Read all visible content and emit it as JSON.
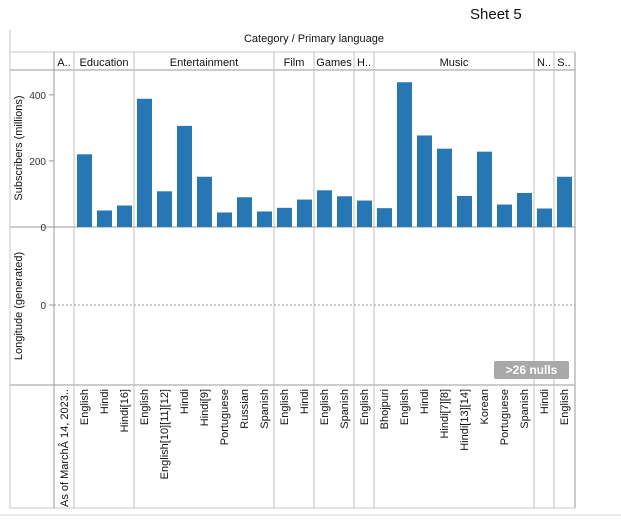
{
  "sheet": {
    "title": "Sheet 5"
  },
  "nulls_badge": ">26 nulls",
  "chart_data": {
    "type": "bar",
    "column_header": "Category  /  Primary language",
    "ylabel_top": "Subscribers (millions)",
    "ylabel_bottom": "Longitude (generated)",
    "y_ticks_top": [
      "400",
      "200",
      "0"
    ],
    "y_ticks_bottom": [
      "0"
    ],
    "ylim": [
      0,
      460
    ],
    "bar_color": "#2677b3",
    "groups": [
      {
        "label": "A..",
        "items": [
          {
            "lang": "As of MarchÂ 14, 2023..",
            "value": null
          }
        ]
      },
      {
        "label": "Education",
        "items": [
          {
            "lang": "English",
            "value": 220
          },
          {
            "lang": "Hindi",
            "value": 50
          },
          {
            "lang": "Hindi[16]",
            "value": 65
          }
        ]
      },
      {
        "label": "Entertainment",
        "items": [
          {
            "lang": "English",
            "value": 388
          },
          {
            "lang": "English[10][11][12]",
            "value": 108
          },
          {
            "lang": "Hindi",
            "value": 306
          },
          {
            "lang": "Hindi[9]",
            "value": 152
          },
          {
            "lang": "Portuguese",
            "value": 44
          },
          {
            "lang": "Russian",
            "value": 90
          },
          {
            "lang": "Spanish",
            "value": 47
          }
        ]
      },
      {
        "label": "Film",
        "items": [
          {
            "lang": "English",
            "value": 58
          },
          {
            "lang": "Hindi",
            "value": 83
          }
        ]
      },
      {
        "label": "Games",
        "items": [
          {
            "lang": "English",
            "value": 111
          },
          {
            "lang": "Spanish",
            "value": 93
          }
        ]
      },
      {
        "label": "H..",
        "items": [
          {
            "lang": "English",
            "value": 80
          }
        ]
      },
      {
        "label": "Music",
        "items": [
          {
            "lang": "Bhojpuri",
            "value": 57
          },
          {
            "lang": "English",
            "value": 438
          },
          {
            "lang": "Hindi",
            "value": 277
          },
          {
            "lang": "Hindi[7][8]",
            "value": 237
          },
          {
            "lang": "Hindi[13][14]",
            "value": 94
          },
          {
            "lang": "Korean",
            "value": 228
          },
          {
            "lang": "Portuguese",
            "value": 68
          },
          {
            "lang": "Spanish",
            "value": 103
          }
        ]
      },
      {
        "label": "N..",
        "items": [
          {
            "lang": "Hindi",
            "value": 56
          }
        ]
      },
      {
        "label": "S..",
        "items": [
          {
            "lang": "English",
            "value": 152
          }
        ]
      }
    ]
  }
}
